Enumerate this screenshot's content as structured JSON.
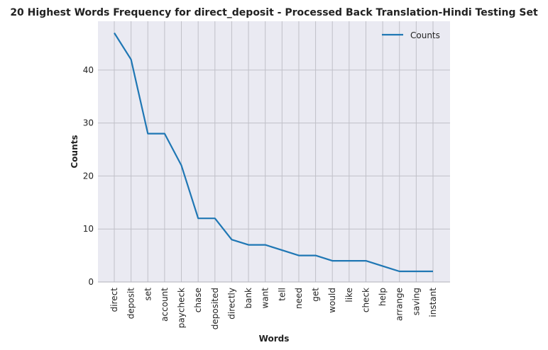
{
  "chart_data": {
    "type": "line",
    "title": "20 Highest Words Frequency for direct_deposit - Processed Back Translation-Hindi Testing Set",
    "xlabel": "Words",
    "ylabel": "Counts",
    "categories": [
      "direct",
      "deposit",
      "set",
      "account",
      "paycheck",
      "chase",
      "deposited",
      "directly",
      "bank",
      "want",
      "tell",
      "need",
      "get",
      "would",
      "like",
      "check",
      "help",
      "arrange",
      "saving",
      "instant"
    ],
    "series": [
      {
        "name": "Counts",
        "values": [
          47,
          42,
          28,
          28,
          22,
          12,
          12,
          8,
          7,
          7,
          6,
          5,
          5,
          4,
          4,
          4,
          3,
          2,
          2,
          2
        ]
      }
    ],
    "ylim": [
      0,
      49.2
    ],
    "yticks": [
      0,
      10,
      20,
      30,
      40
    ],
    "grid": true,
    "legend": "top-right",
    "colors": {
      "line": "#1f77b4",
      "background": "#eaeaf2",
      "grid": "#c0c0c8"
    }
  }
}
